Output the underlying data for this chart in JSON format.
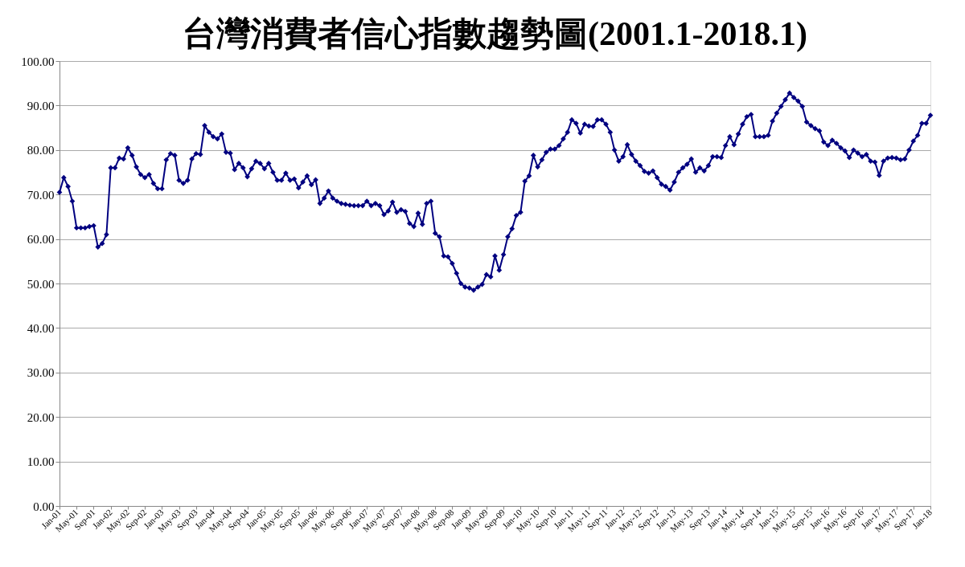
{
  "chart_data": {
    "type": "line",
    "title": "台灣消費者信心指數趨勢圖(2001.1-2018.1)",
    "categories": [
      "Jan-01",
      null,
      null,
      null,
      "May-01",
      null,
      null,
      null,
      "Sep-01",
      null,
      null,
      null,
      "Jan-02",
      null,
      null,
      null,
      "May-02",
      null,
      null,
      null,
      "Sep-02",
      null,
      null,
      null,
      "Jan-03",
      null,
      null,
      null,
      "May-03",
      null,
      null,
      null,
      "Sep-03",
      null,
      null,
      null,
      "Jan-04",
      null,
      null,
      null,
      "May-04",
      null,
      null,
      null,
      "Sep-04",
      null,
      null,
      null,
      "Jan-05",
      null,
      null,
      null,
      "May-05",
      null,
      null,
      null,
      "Sep-05",
      null,
      null,
      null,
      "Jan-06",
      null,
      null,
      null,
      "May-06",
      null,
      null,
      null,
      "Sep-06",
      null,
      null,
      null,
      "Jan-07",
      null,
      null,
      null,
      "May-07",
      null,
      null,
      null,
      "Sep-07",
      null,
      null,
      null,
      "Jan-08",
      null,
      null,
      null,
      "May-08",
      null,
      null,
      null,
      "Sep-08",
      null,
      null,
      null,
      "Jan-09",
      null,
      null,
      null,
      "May-09",
      null,
      null,
      null,
      "Sep-09",
      null,
      null,
      null,
      "Jan-10",
      null,
      null,
      null,
      "May-10",
      null,
      null,
      null,
      "Sep-10",
      null,
      null,
      null,
      "Jan-11",
      null,
      null,
      null,
      "May-11",
      null,
      null,
      null,
      "Sep-11",
      null,
      null,
      null,
      "Jan-12",
      null,
      null,
      null,
      "May-12",
      null,
      null,
      null,
      "Sep-12",
      null,
      null,
      null,
      "Jan-13",
      null,
      null,
      null,
      "May-13",
      null,
      null,
      null,
      "Sep-13",
      null,
      null,
      null,
      "Jan-14",
      null,
      null,
      null,
      "May-14",
      null,
      null,
      null,
      "Sep-14",
      null,
      null,
      null,
      "Jan-15",
      null,
      null,
      null,
      "May-15",
      null,
      null,
      null,
      "Sep-15",
      null,
      null,
      null,
      "Jan-16",
      null,
      null,
      null,
      "May-16",
      null,
      null,
      null,
      "Sep-16",
      null,
      null,
      null,
      "Jan-17",
      null,
      null,
      null,
      "May-17",
      null,
      null,
      null,
      "Sep-17",
      null,
      null,
      null,
      "Jan-18"
    ],
    "series": [
      {
        "color": "#000080",
        "values": [
          70.5,
          73.8,
          71.8,
          68.5,
          62.5,
          62.5,
          62.5,
          62.8,
          63.0,
          58.2,
          59.0,
          61.0,
          76.0,
          76.0,
          78.2,
          78.0,
          80.5,
          78.8,
          76.2,
          74.5,
          73.8,
          74.5,
          72.5,
          71.3,
          71.3,
          77.8,
          79.2,
          78.8,
          73.2,
          72.5,
          73.2,
          78.0,
          79.2,
          79.0,
          85.5,
          84.0,
          83.0,
          82.5,
          83.6,
          79.5,
          79.3,
          75.6,
          77.0,
          76.0,
          74.0,
          75.8,
          77.5,
          77.0,
          75.8,
          77.0,
          75.0,
          73.2,
          73.2,
          74.8,
          73.2,
          73.5,
          71.5,
          72.8,
          74.2,
          72.2,
          73.3,
          68.0,
          69.2,
          70.8,
          69.2,
          68.5,
          68.0,
          67.8,
          67.6,
          67.5,
          67.5,
          67.5,
          68.5,
          67.5,
          68.0,
          67.5,
          65.5,
          66.3,
          68.3,
          66.0,
          66.6,
          66.2,
          63.5,
          62.8,
          65.8,
          63.3,
          68.0,
          68.5,
          61.3,
          60.5,
          56.2,
          56.0,
          54.5,
          52.3,
          50.0,
          49.2,
          49.0,
          48.5,
          49.2,
          49.8,
          52.0,
          51.5,
          56.2,
          53.0,
          56.5,
          60.5,
          62.3,
          65.3,
          66.0,
          73.0,
          74.2,
          78.8,
          76.2,
          77.8,
          79.5,
          80.2,
          80.2,
          81.0,
          82.5,
          84.0,
          86.8,
          86.0,
          83.8,
          85.8,
          85.4,
          85.3,
          86.8,
          86.8,
          85.8,
          84.0,
          80.0,
          77.5,
          78.5,
          81.2,
          79.0,
          77.5,
          76.5,
          75.2,
          74.8,
          75.3,
          73.8,
          72.3,
          71.8,
          71.0,
          72.8,
          75.0,
          76.0,
          76.8,
          78.0,
          75.0,
          76.0,
          75.3,
          76.5,
          78.5,
          78.5,
          78.3,
          81.0,
          83.0,
          81.2,
          83.6,
          85.8,
          87.5,
          88.0,
          83.0,
          83.0,
          83.0,
          83.3,
          86.5,
          88.3,
          89.8,
          91.3,
          92.8,
          91.8,
          91.0,
          89.8,
          86.3,
          85.5,
          84.8,
          84.3,
          81.8,
          81.0,
          82.2,
          81.5,
          80.5,
          79.8,
          78.3,
          80.0,
          79.3,
          78.5,
          79.0,
          77.5,
          77.3,
          74.3,
          77.5,
          78.2,
          78.3,
          78.2,
          77.8,
          78.0,
          80.0,
          82.0,
          83.3,
          86.0,
          86.0,
          87.8
        ]
      }
    ],
    "ylim": [
      0,
      100
    ],
    "yticks": [
      {
        "value": 0,
        "label": "0.00"
      },
      {
        "value": 10,
        "label": "10.00"
      },
      {
        "value": 20,
        "label": "20.00"
      },
      {
        "value": 30,
        "label": "30.00"
      },
      {
        "value": 40,
        "label": "40.00"
      },
      {
        "value": 50,
        "label": "50.00"
      },
      {
        "value": 60,
        "label": "60.00"
      },
      {
        "value": 70,
        "label": "70.00"
      },
      {
        "value": 80,
        "label": "80.00"
      },
      {
        "value": 90,
        "label": "90.00"
      },
      {
        "value": 100,
        "label": "100.00"
      }
    ],
    "grid": "y",
    "marker": "diamond",
    "line_style": "solid",
    "legend": false
  }
}
